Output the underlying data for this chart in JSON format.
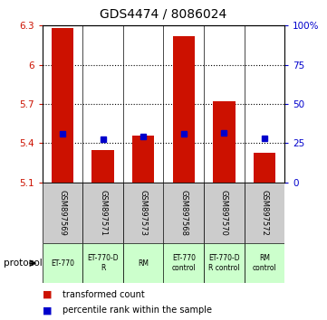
{
  "title": "GDS4474 / 8086024",
  "samples": [
    "GSM897569",
    "GSM897571",
    "GSM897573",
    "GSM897568",
    "GSM897570",
    "GSM897572"
  ],
  "bar_tops": [
    6.28,
    5.35,
    5.46,
    6.22,
    5.72,
    5.33
  ],
  "blue_values": [
    5.47,
    5.43,
    5.45,
    5.47,
    5.48,
    5.44
  ],
  "bar_bottom": 5.1,
  "ylim_left": [
    5.1,
    6.3
  ],
  "ylim_right": [
    0,
    100
  ],
  "yticks_left": [
    5.1,
    5.4,
    5.7,
    6.0,
    6.3
  ],
  "ytick_labels_left": [
    "5.1",
    "5.4",
    "5.7",
    "6",
    "6.3"
  ],
  "yticks_right": [
    0,
    25,
    50,
    75,
    100
  ],
  "ytick_labels_right": [
    "0",
    "25",
    "50",
    "75",
    "100%"
  ],
  "bar_color": "#cc1100",
  "blue_color": "#0000cc",
  "grid_dotted_at": [
    5.4,
    5.7,
    6.0
  ],
  "protocols": [
    {
      "label": "ET-770",
      "span": [
        0,
        1
      ]
    },
    {
      "label": "ET-770-D\nR",
      "span": [
        1,
        2
      ]
    },
    {
      "label": "RM",
      "span": [
        2,
        3
      ]
    },
    {
      "label": "ET-770\ncontrol",
      "span": [
        3,
        4
      ]
    },
    {
      "label": "ET-770-D\nR control",
      "span": [
        4,
        5
      ]
    },
    {
      "label": "RM\ncontrol",
      "span": [
        5,
        6
      ]
    }
  ],
  "protocol_color": "#ccffcc",
  "sample_bg": "#cccccc",
  "legend_red_label": "transformed count",
  "legend_blue_label": "percentile rank within the sample",
  "protocol_label": "protocol"
}
